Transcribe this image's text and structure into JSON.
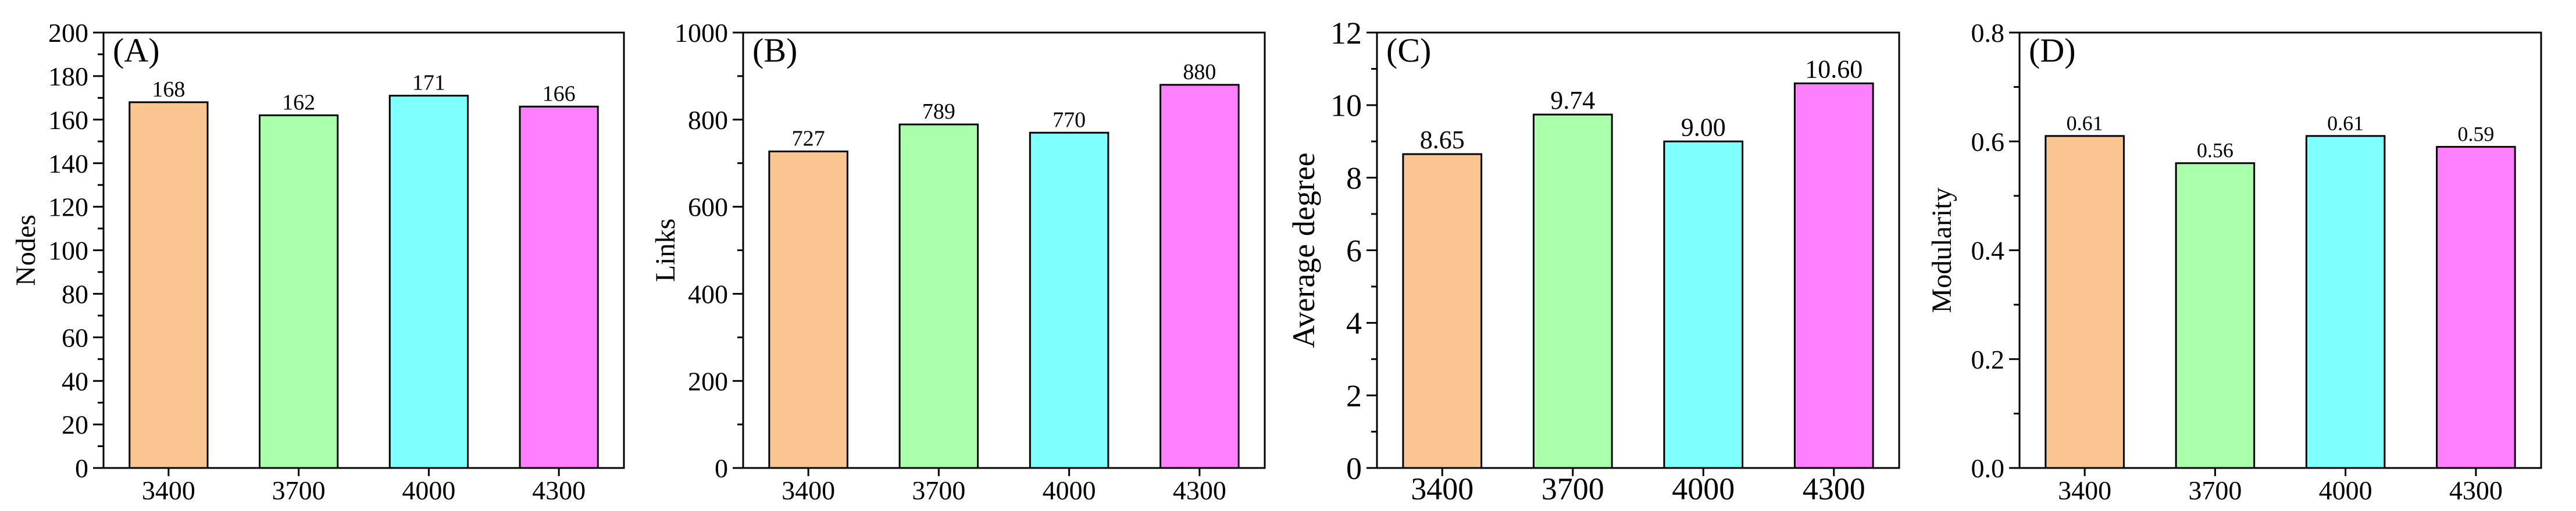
{
  "chart_data": [
    {
      "type": "bar",
      "panel_label": "(A)",
      "ylabel": "Nodes",
      "xlabel": "",
      "categories": [
        "3400",
        "3700",
        "4000",
        "4300"
      ],
      "values": [
        168,
        162,
        171,
        166
      ],
      "value_labels": [
        "168",
        "162",
        "171",
        "166"
      ],
      "bar_colors": [
        "#FAC590",
        "#AAFFAA",
        "#80FFFF",
        "#FF80FF"
      ],
      "ylim": [
        0,
        200
      ],
      "yticks": [
        0,
        20,
        40,
        60,
        80,
        100,
        120,
        140,
        160,
        180,
        200
      ],
      "ytick_labels": [
        "0",
        "20",
        "40",
        "60",
        "80",
        "100",
        "120",
        "140",
        "160",
        "180",
        "200"
      ],
      "minor_per_major": 2,
      "grid": false
    },
    {
      "type": "bar",
      "panel_label": "(B)",
      "ylabel": "Links",
      "xlabel": "",
      "categories": [
        "3400",
        "3700",
        "4000",
        "4300"
      ],
      "values": [
        727,
        789,
        770,
        880
      ],
      "value_labels": [
        "727",
        "789",
        "770",
        "880"
      ],
      "bar_colors": [
        "#FAC590",
        "#AAFFAA",
        "#80FFFF",
        "#FF80FF"
      ],
      "ylim": [
        0,
        1000
      ],
      "yticks": [
        0,
        200,
        400,
        600,
        800,
        1000
      ],
      "ytick_labels": [
        "0",
        "200",
        "400",
        "600",
        "800",
        "1000"
      ],
      "minor_per_major": 2,
      "grid": false
    },
    {
      "type": "bar",
      "panel_label": "(C)",
      "ylabel": "Average degree",
      "xlabel": "",
      "categories": [
        "3400",
        "3700",
        "4000",
        "4300"
      ],
      "values": [
        8.65,
        9.74,
        9.0,
        10.6
      ],
      "value_labels": [
        "8.65",
        "9.74",
        "9.00",
        "10.60"
      ],
      "bar_colors": [
        "#FAC590",
        "#AAFFAA",
        "#80FFFF",
        "#FF80FF"
      ],
      "ylim": [
        0,
        12
      ],
      "yticks": [
        0,
        2,
        4,
        6,
        8,
        10,
        12
      ],
      "ytick_labels": [
        "0",
        "2",
        "4",
        "6",
        "8",
        "10",
        "12"
      ],
      "minor_per_major": 2,
      "grid": false
    },
    {
      "type": "bar",
      "panel_label": "(D)",
      "ylabel": "Modularity",
      "xlabel": "",
      "categories": [
        "3400",
        "3700",
        "4000",
        "4300"
      ],
      "values": [
        0.61,
        0.56,
        0.61,
        0.59
      ],
      "value_labels": [
        "0.61",
        "0.56",
        "0.61",
        "0.59"
      ],
      "bar_colors": [
        "#FAC590",
        "#AAFFAA",
        "#80FFFF",
        "#FF80FF"
      ],
      "ylim": [
        0,
        0.8
      ],
      "yticks": [
        0,
        0.2,
        0.4,
        0.6,
        0.8
      ],
      "ytick_labels": [
        "0.0",
        "0.2",
        "0.4",
        "0.6",
        "0.8"
      ],
      "minor_per_major": 2,
      "grid": false
    }
  ]
}
